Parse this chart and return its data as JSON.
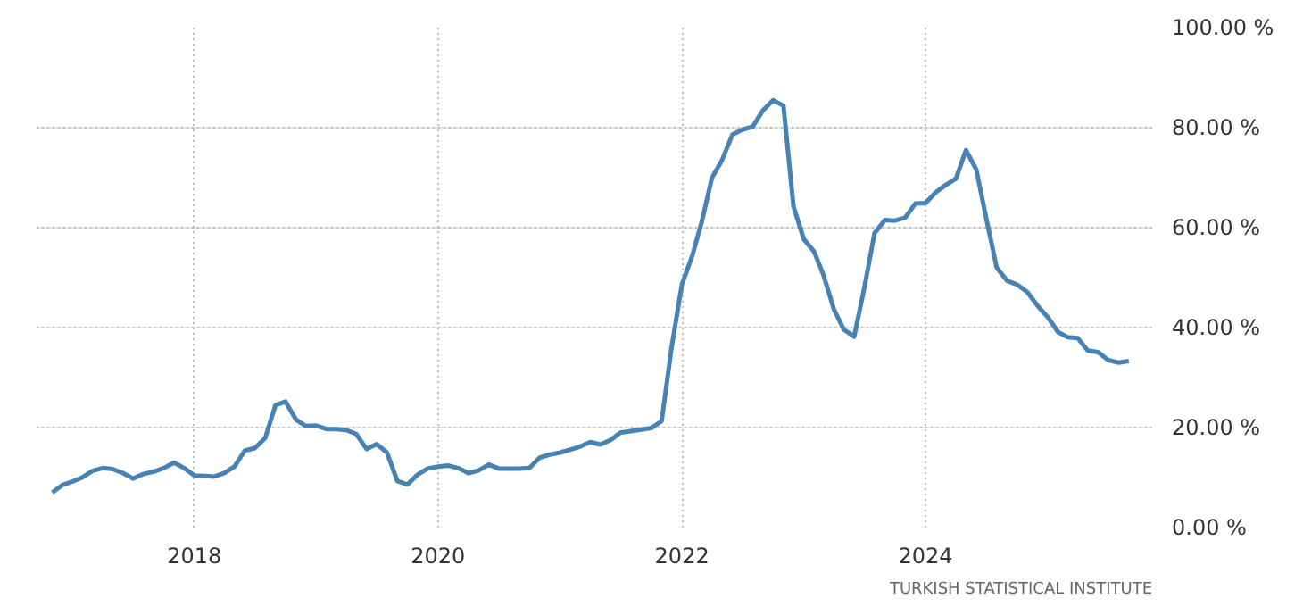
{
  "chart_data": {
    "type": "line",
    "x": [
      "2016-11",
      "2016-12",
      "2017-01",
      "2017-02",
      "2017-03",
      "2017-04",
      "2017-05",
      "2017-06",
      "2017-07",
      "2017-08",
      "2017-09",
      "2017-10",
      "2017-11",
      "2017-12",
      "2018-01",
      "2018-02",
      "2018-03",
      "2018-04",
      "2018-05",
      "2018-06",
      "2018-07",
      "2018-08",
      "2018-09",
      "2018-10",
      "2018-11",
      "2018-12",
      "2019-01",
      "2019-02",
      "2019-03",
      "2019-04",
      "2019-05",
      "2019-06",
      "2019-07",
      "2019-08",
      "2019-09",
      "2019-10",
      "2019-11",
      "2019-12",
      "2020-01",
      "2020-02",
      "2020-03",
      "2020-04",
      "2020-05",
      "2020-06",
      "2020-07",
      "2020-08",
      "2020-09",
      "2020-10",
      "2020-11",
      "2020-12",
      "2021-01",
      "2021-02",
      "2021-03",
      "2021-04",
      "2021-05",
      "2021-06",
      "2021-07",
      "2021-08",
      "2021-09",
      "2021-10",
      "2021-11",
      "2021-12",
      "2022-01",
      "2022-02",
      "2022-03",
      "2022-04",
      "2022-05",
      "2022-06",
      "2022-07",
      "2022-08",
      "2022-09",
      "2022-10",
      "2022-11",
      "2022-12",
      "2023-01",
      "2023-02",
      "2023-03",
      "2023-04",
      "2023-05",
      "2023-06",
      "2023-07",
      "2023-08",
      "2023-09",
      "2023-10",
      "2023-11",
      "2023-12",
      "2024-01",
      "2024-02",
      "2024-03",
      "2024-04",
      "2024-05",
      "2024-06",
      "2024-07",
      "2024-08",
      "2024-09",
      "2024-10",
      "2024-11",
      "2024-12",
      "2025-01",
      "2025-02",
      "2025-03",
      "2025-04",
      "2025-05",
      "2025-06",
      "2025-07",
      "2025-08",
      "2025-09"
    ],
    "series": [
      {
        "color": "#4682b4",
        "values": [
          7.0,
          8.5,
          9.2,
          10.1,
          11.3,
          11.9,
          11.7,
          10.9,
          9.8,
          10.7,
          11.2,
          11.9,
          13.0,
          11.9,
          10.4,
          10.3,
          10.2,
          10.9,
          12.2,
          15.4,
          15.9,
          17.9,
          24.5,
          25.2,
          21.6,
          20.3,
          20.4,
          19.7,
          19.7,
          19.5,
          18.7,
          15.7,
          16.7,
          15.0,
          9.3,
          8.6,
          10.6,
          11.8,
          12.2,
          12.4,
          11.9,
          10.9,
          11.4,
          12.6,
          11.8,
          11.8,
          11.8,
          11.9,
          14.0,
          14.6,
          15.0,
          15.6,
          16.2,
          17.1,
          16.6,
          17.5,
          19.0,
          19.3,
          19.6,
          19.9,
          21.3,
          36.1,
          48.7,
          54.4,
          61.1,
          70.0,
          73.5,
          78.6,
          79.6,
          80.2,
          83.5,
          85.5,
          84.4,
          64.3,
          57.7,
          55.2,
          50.5,
          43.7,
          39.6,
          38.2,
          47.8,
          58.9,
          61.5,
          61.4,
          62.0,
          64.8,
          64.9,
          67.1,
          68.5,
          69.8,
          75.5,
          71.6,
          61.8,
          52.0,
          49.4,
          48.6,
          47.1,
          44.4,
          42.1,
          39.1,
          38.1,
          37.9,
          35.4,
          35.1,
          33.5,
          33.0,
          33.3
        ]
      }
    ],
    "xlim": [
      "2016-09-15",
      "2025-11-10"
    ],
    "xticks": [
      "2018",
      "2020",
      "2022",
      "2024"
    ],
    "ylim": [
      0,
      100
    ],
    "yticks": [
      {
        "value": 0,
        "label": "0.00 %"
      },
      {
        "value": 20,
        "label": "20.00 %"
      },
      {
        "value": 40,
        "label": "40.00 %"
      },
      {
        "value": 60,
        "label": "60.00 %"
      },
      {
        "value": 80,
        "label": "80.00 %"
      },
      {
        "value": 100,
        "label": "100.00 %"
      }
    ],
    "grid": true,
    "annotations": [
      "TURKISH STATISTICAL INSTITUTE"
    ]
  }
}
